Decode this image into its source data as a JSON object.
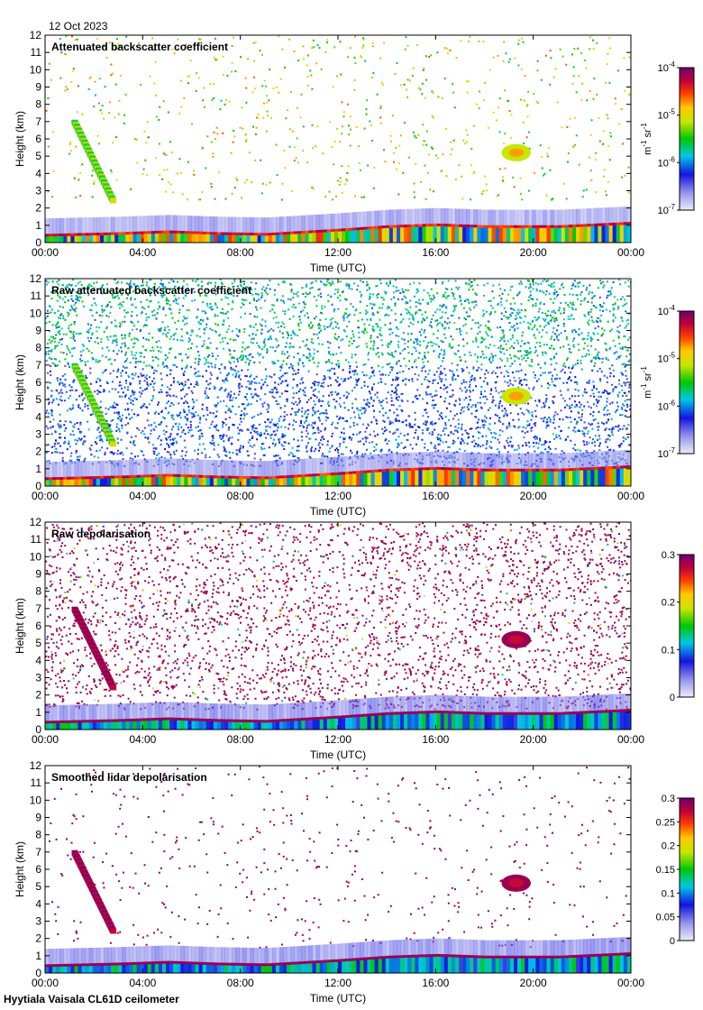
{
  "date_label": "12 Oct 2023",
  "footer_label": "Hyytiala Vaisala CL61D ceilometer",
  "chart_data": [
    {
      "type": "heatmap",
      "title": "Attenuated backscatter coefficient",
      "xlabel": "Time (UTC)",
      "ylabel": "Height (km)",
      "x_ticks": [
        "00:00",
        "04:00",
        "08:00",
        "12:00",
        "16:00",
        "20:00",
        "00:00"
      ],
      "y_ticks": [
        "0",
        "1",
        "2",
        "3",
        "4",
        "5",
        "6",
        "7",
        "8",
        "9",
        "10",
        "11",
        "12"
      ],
      "xlim_hours": [
        0,
        24
      ],
      "ylim_km": [
        0,
        12
      ],
      "colorbar": {
        "scale": "log",
        "range": [
          1e-07,
          0.0001
        ],
        "ticks": [
          {
            "value": 0.0001,
            "base": "10",
            "exp": "-4"
          },
          {
            "value": 1e-05,
            "base": "10",
            "exp": "-5"
          },
          {
            "value": 1e-06,
            "base": "10",
            "exp": "-6"
          },
          {
            "value": 1e-07,
            "base": "10",
            "exp": "-7"
          }
        ],
        "unit": {
          "m": "m",
          "m_exp": "-1",
          "sr": "sr",
          "sr_exp": "-1"
        }
      },
      "noise_level": "low"
    },
    {
      "type": "heatmap",
      "title": "Raw attenuated backscatter coefficient",
      "xlabel": "Time (UTC)",
      "ylabel": "Height (km)",
      "x_ticks": [
        "00:00",
        "04:00",
        "08:00",
        "12:00",
        "16:00",
        "20:00",
        "00:00"
      ],
      "y_ticks": [
        "0",
        "1",
        "2",
        "3",
        "4",
        "5",
        "6",
        "7",
        "8",
        "9",
        "10",
        "11",
        "12"
      ],
      "xlim_hours": [
        0,
        24
      ],
      "ylim_km": [
        0,
        12
      ],
      "colorbar": {
        "scale": "log",
        "range": [
          1e-07,
          0.0001
        ],
        "ticks": [
          {
            "value": 0.0001,
            "base": "10",
            "exp": "-4"
          },
          {
            "value": 1e-05,
            "base": "10",
            "exp": "-5"
          },
          {
            "value": 1e-06,
            "base": "10",
            "exp": "-6"
          },
          {
            "value": 1e-07,
            "base": "10",
            "exp": "-7"
          }
        ],
        "unit": {
          "m": "m",
          "m_exp": "-1",
          "sr": "sr",
          "sr_exp": "-1"
        }
      },
      "noise_level": "high"
    },
    {
      "type": "heatmap",
      "title": "Raw depolarisation",
      "xlabel": "Time (UTC)",
      "ylabel": "Height (km)",
      "x_ticks": [
        "00:00",
        "04:00",
        "08:00",
        "12:00",
        "16:00",
        "20:00",
        "00:00"
      ],
      "y_ticks": [
        "0",
        "1",
        "2",
        "3",
        "4",
        "5",
        "6",
        "7",
        "8",
        "9",
        "10",
        "11",
        "12"
      ],
      "xlim_hours": [
        0,
        24
      ],
      "ylim_km": [
        0,
        12
      ],
      "colorbar": {
        "scale": "linear",
        "range": [
          0,
          0.3
        ],
        "ticks": [
          {
            "value": 0.3,
            "label": "0.3"
          },
          {
            "value": 0.2,
            "label": "0.2"
          },
          {
            "value": 0.1,
            "label": "0.1"
          },
          {
            "value": 0,
            "label": "0"
          }
        ]
      },
      "noise_level": "depol_raw"
    },
    {
      "type": "heatmap",
      "title": "Smoothed lidar depolarisation",
      "xlabel": "Time (UTC)",
      "ylabel": "Height (km)",
      "x_ticks": [
        "00:00",
        "04:00",
        "08:00",
        "12:00",
        "16:00",
        "20:00",
        "00:00"
      ],
      "y_ticks": [
        "0",
        "1",
        "2",
        "3",
        "4",
        "5",
        "6",
        "7",
        "8",
        "9",
        "10",
        "11",
        "12"
      ],
      "xlim_hours": [
        0,
        24
      ],
      "ylim_km": [
        0,
        12
      ],
      "colorbar": {
        "scale": "linear",
        "range": [
          0,
          0.3
        ],
        "ticks": [
          {
            "value": 0.3,
            "label": "0.3"
          },
          {
            "value": 0.25,
            "label": "0.25"
          },
          {
            "value": 0.2,
            "label": "0.2"
          },
          {
            "value": 0.15,
            "label": "0.15"
          },
          {
            "value": 0.1,
            "label": "0.1"
          },
          {
            "value": 0.05,
            "label": "0.05"
          },
          {
            "value": 0,
            "label": "0"
          }
        ]
      },
      "noise_level": "depol_smooth"
    }
  ],
  "features": {
    "boundary_layer_top_km": [
      [
        0,
        0.4
      ],
      [
        3,
        0.5
      ],
      [
        5,
        0.6
      ],
      [
        7,
        0.5
      ],
      [
        9,
        0.45
      ],
      [
        12,
        0.7
      ],
      [
        14,
        0.9
      ],
      [
        16,
        1.0
      ],
      [
        18,
        0.9
      ],
      [
        21,
        0.9
      ],
      [
        24,
        1.1
      ]
    ],
    "cirrus_fall_streak": {
      "start_hours": 1.2,
      "end_hours": 2.8,
      "top_km": 6.9,
      "bottom_km": 2.3
    },
    "cloud_patch": {
      "center_hours": 19.3,
      "center_km": 5.2,
      "width_hours": 1.2,
      "height_km": 1.0
    }
  }
}
